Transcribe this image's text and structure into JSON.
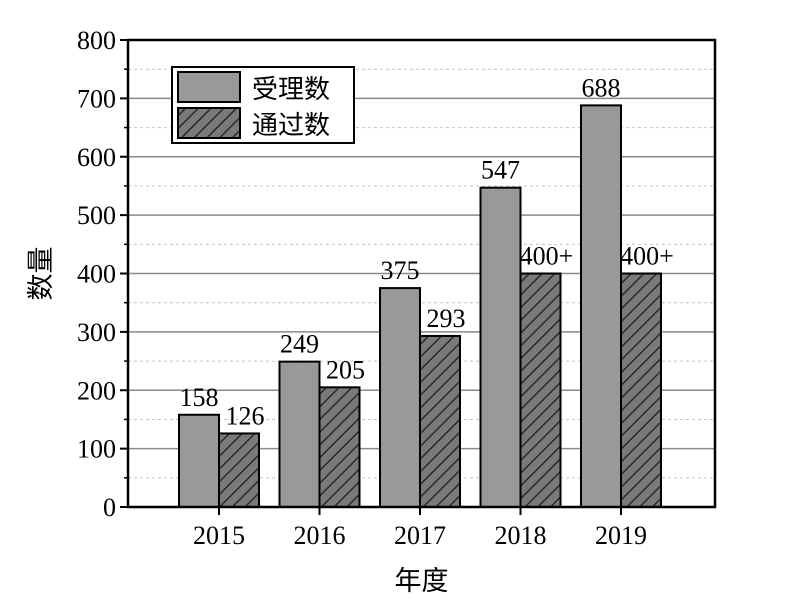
{
  "chart_data": {
    "type": "bar",
    "categories": [
      "2015",
      "2016",
      "2017",
      "2018",
      "2019"
    ],
    "series": [
      {
        "name": "受理数",
        "values": [
          158,
          249,
          375,
          547,
          688
        ],
        "labels": [
          "158",
          "249",
          "375",
          "547",
          "688"
        ],
        "color": "#999999",
        "pattern": "solid"
      },
      {
        "name": "通过数",
        "values": [
          126,
          205,
          293,
          400,
          400
        ],
        "labels": [
          "126",
          "205",
          "293",
          "400+",
          "400+"
        ],
        "color": "#777777",
        "pattern": "hatch"
      }
    ],
    "xlabel": "年度",
    "ylabel": "数量",
    "ylim": [
      0,
      800
    ],
    "yticks": [
      0,
      100,
      200,
      300,
      400,
      500,
      600,
      700,
      800
    ],
    "grid": true,
    "legend": "top-left"
  }
}
